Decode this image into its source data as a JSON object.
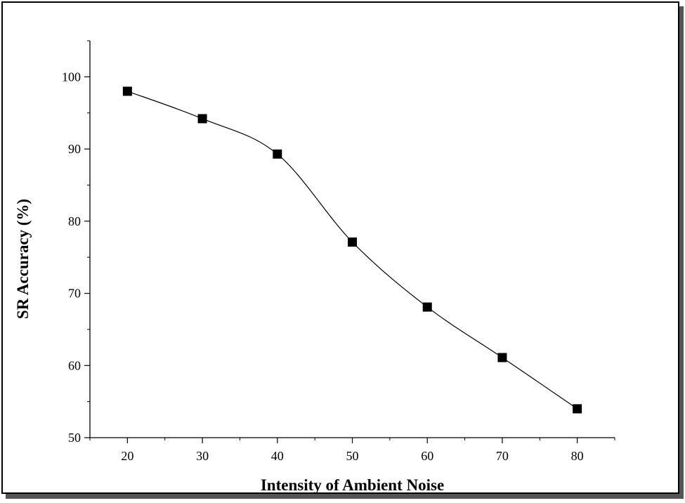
{
  "chart_data": {
    "type": "line",
    "markers": "filled-square",
    "x": [
      20,
      30,
      40,
      50,
      60,
      70,
      80
    ],
    "series": [
      {
        "values": [
          98,
          94.2,
          89.3,
          77.1,
          68.1,
          61.1,
          54.0
        ]
      }
    ],
    "xlabel": "Intensity of Ambient Noise",
    "ylabel": "SR Accuracy (%)",
    "xlim": [
      15,
      85
    ],
    "ylim": [
      50,
      105
    ],
    "xticks": [
      "20",
      "30",
      "40",
      "50",
      "60",
      "70",
      "80"
    ],
    "yticks": [
      "50",
      "60",
      "70",
      "80",
      "90",
      "100"
    ],
    "grid": false,
    "line_color": "#000000",
    "marker_color": "#000000"
  }
}
